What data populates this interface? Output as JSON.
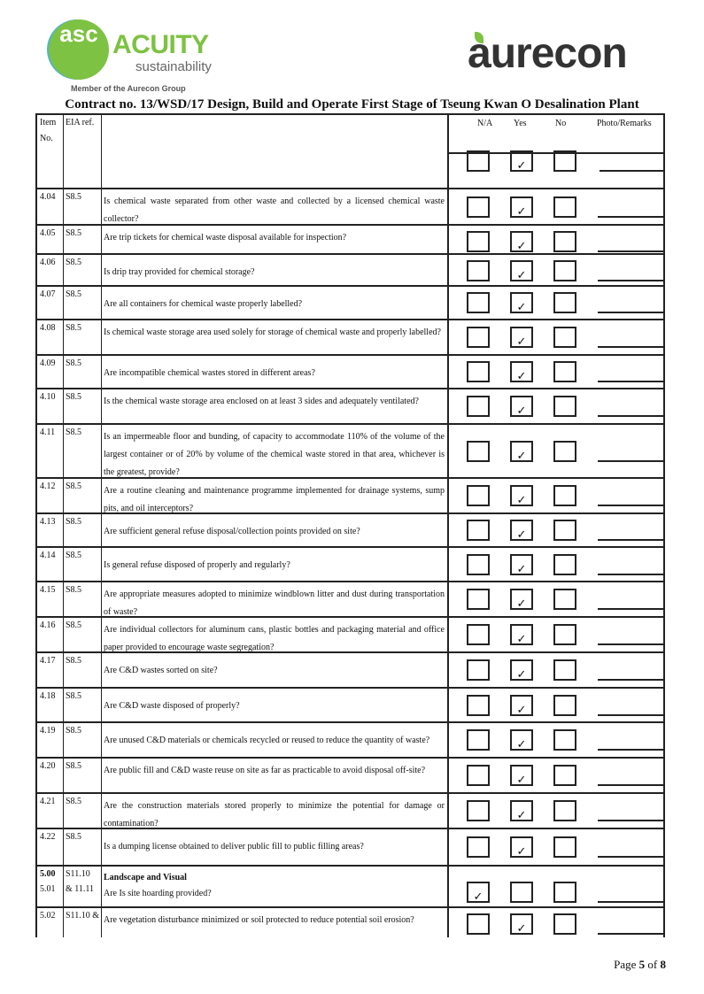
{
  "logos": {
    "acuity_mark": "asc",
    "acuity_name": "ACUITY",
    "acuity_sub": "sustainability",
    "acuity_member": "Member of the Aurecon Group",
    "aurecon": "aurecon",
    "brand_green": "#7dc242",
    "brand_grey": "#333333"
  },
  "title": "Contract no.  13/WSD/17 Design, Build and Operate First Stage of Tseung Kwan O Desalination Plant",
  "header": {
    "item": "Item No.",
    "eia": "EIA ref.",
    "na": "N/A",
    "yes": "Yes",
    "no": "No",
    "remarks": "Photo/Remarks",
    "marker": "✓"
  },
  "rows": [
    {
      "item": "4.04",
      "eia": "S8.5",
      "q": "Is chemical waste separated from other waste and collected by a licensed chemical waste collector?",
      "check": "yes"
    },
    {
      "item": "4.05",
      "eia": "S8.5",
      "q": "Are trip tickets for chemical waste disposal available for inspection?",
      "check": "yes"
    },
    {
      "item": "4.06",
      "eia": "S8.5",
      "q": "Is drip tray provided for chemical storage?",
      "check": "yes"
    },
    {
      "item": "4.07",
      "eia": "S8.5",
      "q": "Are all containers for chemical waste properly labelled?",
      "check": "yes"
    },
    {
      "item": "4.08",
      "eia": "S8.5",
      "q": "Is chemical waste storage area used solely for storage of chemical waste and properly labelled?",
      "check": "yes"
    },
    {
      "item": "4.09",
      "eia": "S8.5",
      "q": "Are incompatible chemical wastes stored in different areas?",
      "check": "yes"
    },
    {
      "item": "4.10",
      "eia": "S8.5",
      "q": "Is the chemical waste storage area enclosed on at least 3 sides and adequately ventilated?",
      "check": "yes"
    },
    {
      "item": "4.11",
      "eia": "S8.5",
      "q": "Is an impermeable floor and bunding, of capacity to accommodate 110% of the volume of the largest container or of 20% by volume of the chemical waste stored in that area, whichever is the greatest, provide?",
      "check": "yes"
    },
    {
      "item": "4.12",
      "eia": "S8.5",
      "q": "Are a routine cleaning and maintenance programme implemented for drainage systems, sump pits, and oil interceptors?",
      "check": "yes"
    },
    {
      "item": "4.13",
      "eia": "S8.5",
      "q": "Are sufficient general refuse disposal/collection points provided on site?",
      "check": "yes"
    },
    {
      "item": "4.14",
      "eia": "S8.5",
      "q": "Is general refuse disposed of properly and regularly?",
      "check": "yes"
    },
    {
      "item": "4.15",
      "eia": "S8.5",
      "q": "Are appropriate measures adopted to minimize windblown litter and dust during transportation of waste?",
      "check": "yes"
    },
    {
      "item": "4.16",
      "eia": "S8.5",
      "q": "Are individual collectors for aluminum cans, plastic bottles and packaging material and office paper provided to encourage waste segregation?",
      "check": "yes"
    },
    {
      "item": "4.17",
      "eia": "S8.5",
      "q": "Are C&D wastes sorted on site?",
      "check": "yes"
    },
    {
      "item": "4.18",
      "eia": "S8.5",
      "q": "Are C&D waste disposed of properly?",
      "check": "yes"
    },
    {
      "item": "4.19",
      "eia": "S8.5",
      "q": "Are unused C&D materials or chemicals recycled or reused to reduce the quantity of waste?",
      "check": "yes"
    },
    {
      "item": "4.20",
      "eia": "S8.5",
      "q": "Are public fill and C&D waste reuse on site as far as practicable to avoid disposal off-site?",
      "check": "yes"
    },
    {
      "item": "4.21",
      "eia": "S8.5",
      "q": "Are the construction materials stored properly to minimize the potential for damage or contamination?",
      "check": "yes"
    },
    {
      "item": "4.22",
      "eia": "S8.5",
      "q": "Is a dumping license obtained to deliver public fill to public filling areas?",
      "check": "yes"
    },
    {
      "item": "5.00",
      "eia": "S11.10",
      "q": "Landscape and Visual",
      "section": true,
      "item2": "5.01",
      "eia2": "& 11.11",
      "q2": "Are Is site hoarding provided?",
      "check": "na"
    },
    {
      "item": "5.02",
      "eia": "S11.10  &",
      "q": "Are vegetation disturbance minimized or soil protected to reduce potential soil erosion?",
      "check": "yes"
    }
  ],
  "footer": {
    "page_prefix": "Page ",
    "page": "5",
    "of": " of ",
    "total": "8"
  }
}
